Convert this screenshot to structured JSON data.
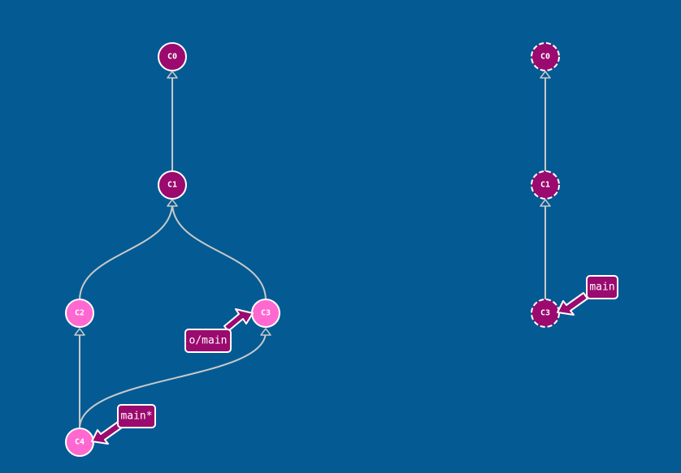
{
  "local_repo": {
    "commits": [
      {
        "id": "C0",
        "style": "dark"
      },
      {
        "id": "C1",
        "style": "dark"
      },
      {
        "id": "C2",
        "style": "light"
      },
      {
        "id": "C3",
        "style": "light"
      },
      {
        "id": "C4",
        "style": "light"
      }
    ],
    "edges": [
      {
        "from": "C1",
        "to": "C0"
      },
      {
        "from": "C2",
        "to": "C1"
      },
      {
        "from": "C3",
        "to": "C1"
      },
      {
        "from": "C4",
        "to": "C2"
      },
      {
        "from": "C4",
        "to": "C3"
      }
    ],
    "branches": [
      {
        "name": "o/main",
        "target": "C3"
      },
      {
        "name": "main*",
        "target": "C4"
      }
    ]
  },
  "remote_repo": {
    "commits": [
      {
        "id": "C0",
        "style": "dark"
      },
      {
        "id": "C1",
        "style": "dark"
      },
      {
        "id": "C3",
        "style": "dark"
      }
    ],
    "edges": [
      {
        "from": "C1",
        "to": "C0"
      },
      {
        "from": "C3",
        "to": "C1"
      }
    ],
    "branches": [
      {
        "name": "main",
        "target": "C3"
      }
    ]
  },
  "colors": {
    "background": "#045b94",
    "commit_dark": "#9b0a6e",
    "commit_light": "#ff68d0",
    "edge": "#c9c9c9",
    "outline": "#ffffff"
  }
}
